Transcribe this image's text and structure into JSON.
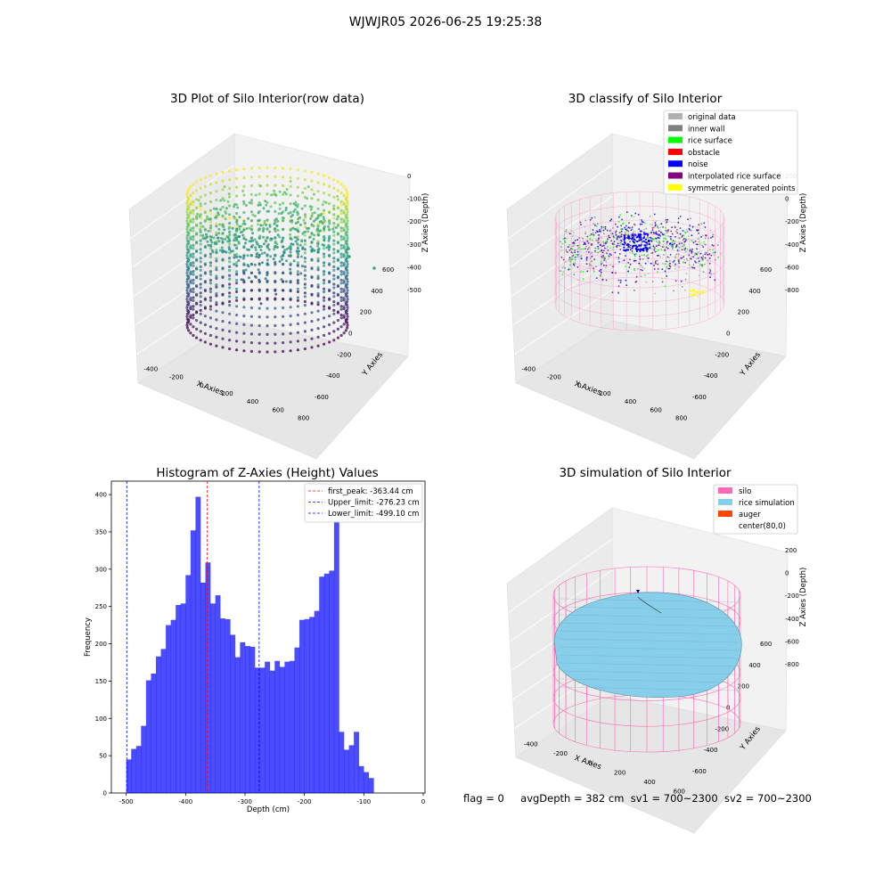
{
  "suptitle": "WJWJR05 2026-06-25 19:25:38",
  "footer": {
    "flag": "flag = 0",
    "avg": "avgDepth = 382 cm",
    "sv1": "sv1 = 700~2300",
    "sv2": "sv2 = 700~2300"
  },
  "chart_data": [
    {
      "type": "scatter",
      "title": "3D Plot of Silo Interior(row data)",
      "xlabel": "X Axies",
      "ylabel": "Y Axies",
      "zlabel": "Z Axies (Depth)",
      "xticks": [
        "-400",
        "-200",
        "0",
        "200",
        "400",
        "600",
        "800"
      ],
      "yticks": [
        "-600",
        "-400",
        "-200",
        "0",
        "200",
        "400",
        "600"
      ],
      "zticks": [
        "0",
        "-100",
        "-200",
        "-300",
        "-400",
        "-500"
      ],
      "zlim": [
        -520,
        0
      ],
      "colormap": "viridis",
      "cylinder_center": [
        80,
        0
      ],
      "cylinder_radius": 560,
      "z_range_points": [
        -520,
        -80
      ]
    },
    {
      "type": "scatter",
      "title": "3D classify of Silo Interior",
      "xlabel": "X Axies",
      "ylabel": "Y Axies",
      "zlabel": "Z Axies (Depth)",
      "xticks": [
        "-400",
        "-200",
        "0",
        "200",
        "400",
        "600",
        "800"
      ],
      "yticks": [
        "-600",
        "-400",
        "-200",
        "0",
        "200",
        "400",
        "600"
      ],
      "zticks": [
        "200",
        "0",
        "-200",
        "-400",
        "-600",
        "-800"
      ],
      "legend": [
        {
          "label": "original data",
          "color": "#b0b0b0"
        },
        {
          "label": "inner wall",
          "color": "#808080"
        },
        {
          "label": "rice surface",
          "color": "#00ff00"
        },
        {
          "label": "obstacle",
          "color": "#ff0000"
        },
        {
          "label": "noise",
          "color": "#0000ff"
        },
        {
          "label": "interpolated rice surface",
          "color": "#800080"
        },
        {
          "label": "symmetric generated points",
          "color": "#ffff00"
        }
      ],
      "legend_position": "top-right"
    },
    {
      "type": "bar",
      "title": "Histogram of Z-Axies (Height) Values",
      "xlabel": "Depth (cm)",
      "ylabel": "Frequency",
      "xlim": [
        -525,
        3
      ],
      "ylim": [
        0,
        418
      ],
      "xticks": [
        -500,
        -400,
        -300,
        -200,
        -100,
        0
      ],
      "yticks": [
        0,
        50,
        100,
        150,
        200,
        250,
        300,
        350,
        400
      ],
      "bin_start": -500,
      "bin_width": 8.33,
      "color": "#0000ff",
      "values": [
        45,
        59,
        63,
        90,
        151,
        160,
        183,
        193,
        225,
        232,
        252,
        254,
        292,
        352,
        397,
        282,
        309,
        254,
        265,
        234,
        233,
        212,
        182,
        202,
        197,
        196,
        168,
        168,
        176,
        164,
        177,
        169,
        176,
        177,
        195,
        232,
        233,
        236,
        244,
        290,
        294,
        298,
        365,
        82,
        58,
        64,
        82,
        36,
        28,
        20
      ],
      "lines": [
        {
          "label": "first_peak: -363.44 cm",
          "value": -363.44,
          "color": "#ff0000"
        },
        {
          "label": "Upper_limit: -276.23 cm",
          "value": -276.23,
          "color": "#0000ff"
        },
        {
          "label": "Lower_limit: -499.10 cm",
          "value": -499.1,
          "color": "#0000ff"
        }
      ],
      "legend_position": "top-right"
    },
    {
      "type": "scatter",
      "title": "3D simulation of Silo Interior",
      "xlabel": "X Axies",
      "ylabel": "Y Axies",
      "zlabel": "Z Axies (Depth)",
      "xticks": [
        "-400",
        "-200",
        "0",
        "200",
        "400",
        "600"
      ],
      "yticks": [
        "-600",
        "-400",
        "-200",
        "0",
        "200",
        "400",
        "600"
      ],
      "zticks": [
        "200",
        "0",
        "-200",
        "-400",
        "-600",
        "-800"
      ],
      "legend": [
        {
          "label": "silo",
          "color": "#ff69b4"
        },
        {
          "label": "rice simulation",
          "color": "#87ceeb"
        },
        {
          "label": "auger",
          "color": "#ff4500"
        },
        {
          "label": "center(80,0)",
          "color": ""
        }
      ],
      "legend_position": "top-right"
    }
  ]
}
